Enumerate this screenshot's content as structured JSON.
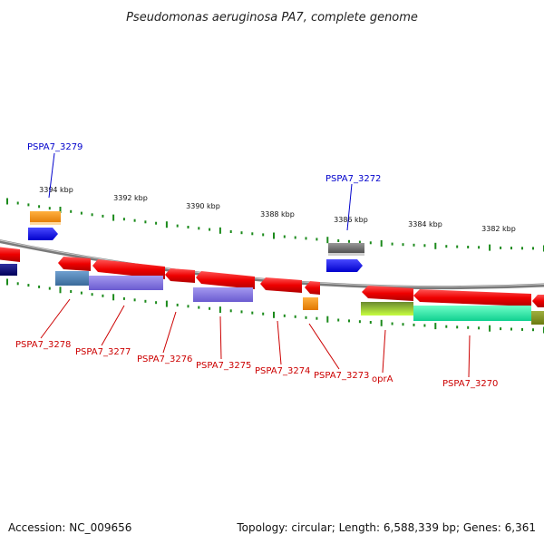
{
  "title": "Pseudomonas aeruginosa PA7, complete genome",
  "footer": {
    "accession": "Accession: NC_009656",
    "summary": "Topology: circular; Length: 6,588,339 bp; Genes: 6,361"
  },
  "scale_labels": [
    "3394 kbp",
    "3392 kbp",
    "3390 kbp",
    "3388 kbp",
    "3386 kbp",
    "3384 kbp",
    "3382 kbp"
  ],
  "colors": {
    "backbone": "#888888",
    "tick": "#1b8a1b",
    "label_top": "#0000cc",
    "label_bottom": "#cc0000"
  },
  "top_labels": [
    "PSPA7_3279",
    "PSPA7_3272"
  ],
  "bottom_labels": [
    "PSPA7_3278",
    "PSPA7_3277",
    "PSPA7_3276",
    "PSPA7_3275",
    "PSPA7_3274",
    "PSPA7_3273",
    "oprA",
    "PSPA7_3270"
  ]
}
